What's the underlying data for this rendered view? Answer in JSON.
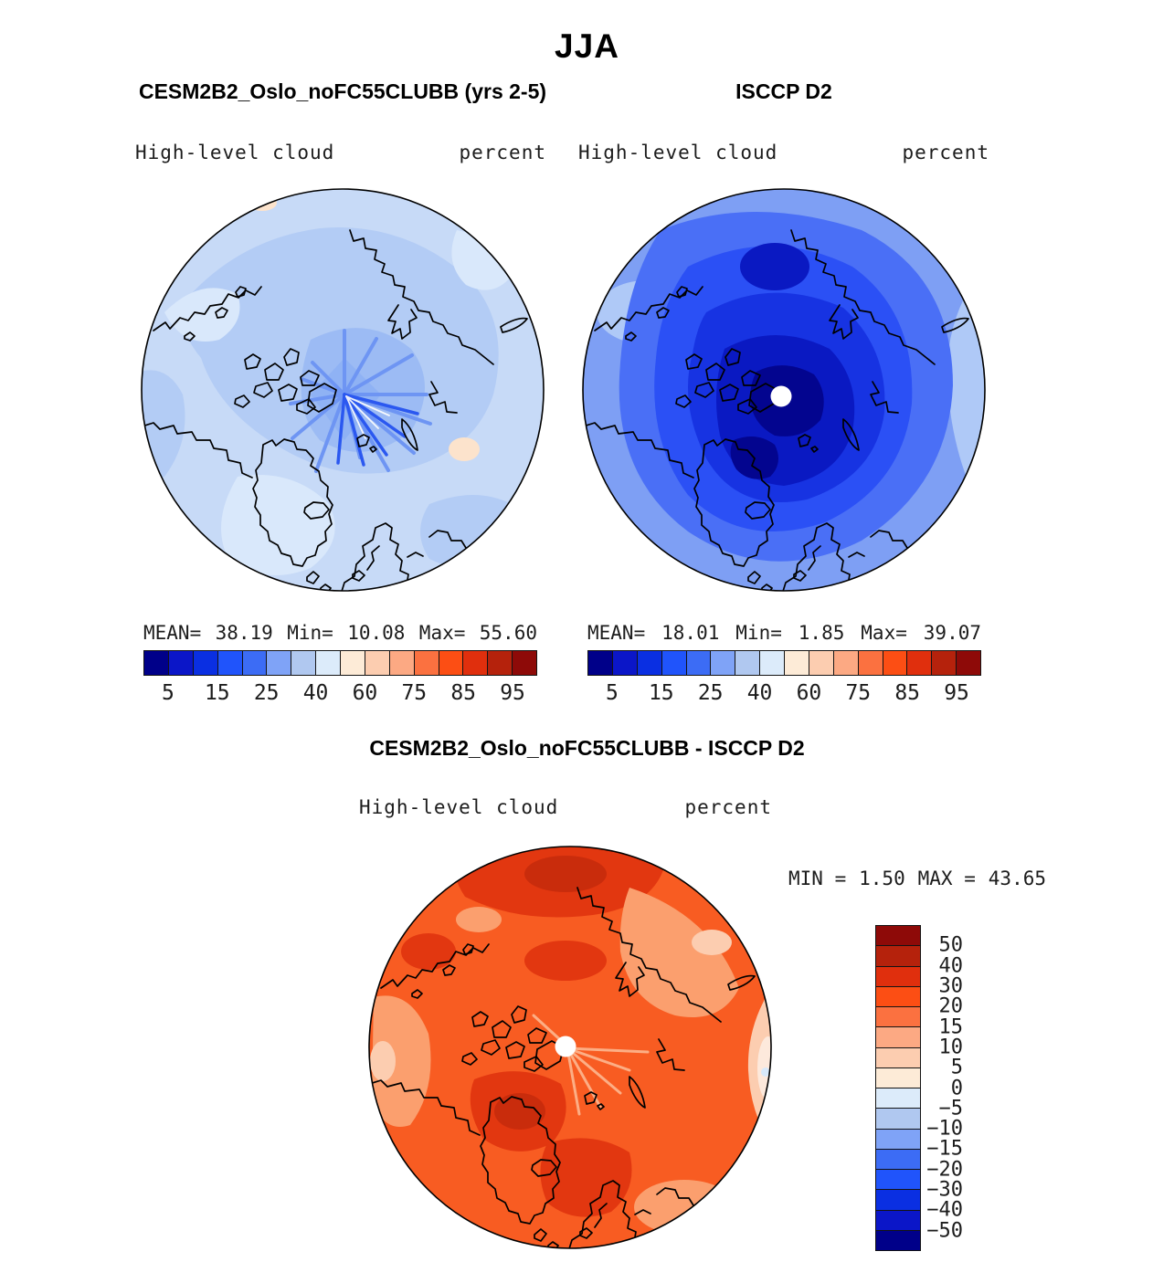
{
  "page": {
    "title": "JJA"
  },
  "panels": [
    {
      "id": "model",
      "title": "CESM2B2_Oslo_noFC55CLUBB (yrs 2-5)",
      "var_label": "High-level cloud",
      "units_label": "percent",
      "stats": {
        "mean_label": "MEAN=",
        "mean": "38.19",
        "min_label": "Min=",
        "min": "10.08",
        "max_label": "Max=",
        "max": "55.60"
      }
    },
    {
      "id": "obs",
      "title": "ISCCP D2",
      "var_label": "High-level cloud",
      "units_label": "percent",
      "stats": {
        "mean_label": "MEAN=",
        "mean": "18.01",
        "min_label": "Min=",
        "min": "1.85",
        "max_label": "Max=",
        "max": "39.07"
      }
    },
    {
      "id": "diff",
      "title": "CESM2B2_Oslo_noFC55CLUBB - ISCCP D2",
      "var_label": "High-level cloud",
      "units_label": "percent",
      "stats": {
        "min_label": "MIN =",
        "min": "1.50",
        "max_label": "MAX =",
        "max": "43.65"
      }
    }
  ],
  "colorbar": {
    "palette": [
      "#000089",
      "#0B16C8",
      "#0A2FE2",
      "#2054FB",
      "#3C6CF5",
      "#7FA3F7",
      "#B0C8F0",
      "#DCEBFA",
      "#FDEBD7",
      "#FCCDB0",
      "#FCA983",
      "#FB7140",
      "#FC4E14",
      "#E02F0D",
      "#B5220C",
      "#8E0A08"
    ],
    "segments": 16,
    "labels": [
      "5",
      "15",
      "25",
      "40",
      "60",
      "75",
      "85",
      "95"
    ],
    "positions": [
      1,
      3,
      5,
      7,
      9,
      11,
      13,
      15
    ]
  },
  "diff_colorbar": {
    "palette": [
      "#8E0A08",
      "#B5220C",
      "#E02F0D",
      "#FC4E14",
      "#FB7140",
      "#FCA983",
      "#FCCDB0",
      "#FDEBD7",
      "#DCEBFA",
      "#B0C8F0",
      "#7FA3F7",
      "#3C6CF5",
      "#2054FB",
      "#0A2FE2",
      "#0B16C8",
      "#000089"
    ],
    "segments": 16,
    "labels": [
      "50",
      "40",
      "30",
      "20",
      "15",
      "10",
      "5",
      "0",
      "−5",
      "−10",
      "−15",
      "−20",
      "−30",
      "−40",
      "−50"
    ],
    "positions": [
      1,
      2,
      3,
      4,
      5,
      6,
      7,
      8,
      9,
      10,
      11,
      12,
      13,
      14,
      15
    ]
  },
  "colors": {
    "m_base": "#C7DAF7",
    "m_mid": "#B3CCF5",
    "m_dark": "#9CBBF4",
    "m_core": "#8FB2F4",
    "m_light": "#D9E8FB",
    "m_star": "#6E95F3",
    "m_star2": "#2B58F0",
    "peach": "#FCE3CC",
    "o_base": "#7E9FF4",
    "o_light": "#AFC9F7",
    "o_mid": "#4A6FF6",
    "o_mid2": "#2B50F5",
    "o_dark": "#1733E2",
    "o_dark2": "#0A19C2",
    "o_core": "#03058F",
    "d_base": "#F85C22",
    "d_dark": "#E23710",
    "d_dark2": "#C92C0C",
    "d_light": "#FB9F6E",
    "d_light2": "#FCCDB0",
    "d_pale": "#FDE9DC",
    "d_streak": "#FCAE85",
    "d_blue": "#D8E9FA"
  },
  "chart_data": [
    {
      "type": "heatmap",
      "subtype": "polar_stereographic_contour_map",
      "season": "JJA",
      "title": "CESM2B2_Oslo_noFC55CLUBB (yrs 2-5)",
      "variable": "High-level cloud",
      "units": "percent",
      "region": "Arctic (Northern Hemisphere polar view with coastlines)",
      "stats": {
        "mean": 38.19,
        "min": 10.08,
        "max": 55.6
      },
      "contour_levels": [
        0,
        5,
        10,
        15,
        20,
        25,
        30,
        40,
        50,
        60,
        70,
        75,
        80,
        85,
        90,
        95,
        100
      ],
      "labeled_levels": [
        5,
        15,
        25,
        40,
        60,
        75,
        85,
        95
      ],
      "palette": [
        "#000089",
        "#0B16C8",
        "#0A2FE2",
        "#2054FB",
        "#3C6CF5",
        "#7FA3F7",
        "#B0C8F0",
        "#DCEBFA",
        "#FDEBD7",
        "#FCCDB0",
        "#FCA983",
        "#FB7140",
        "#FC4E14",
        "#E02F0D",
        "#B5220C",
        "#8E0A08"
      ],
      "legend_position": "below",
      "notes": "Field mostly 25-45% (light/medium blue); radial interpolation star artifact at pole; two tiny peach spots (~55%)"
    },
    {
      "type": "heatmap",
      "subtype": "polar_stereographic_contour_map",
      "season": "JJA",
      "title": "ISCCP D2",
      "variable": "High-level cloud",
      "units": "percent",
      "region": "Arctic (Northern Hemisphere polar view with coastlines)",
      "stats": {
        "mean": 18.01,
        "min": 1.85,
        "max": 39.07
      },
      "contour_levels": [
        0,
        5,
        10,
        15,
        20,
        25,
        30,
        40,
        50,
        60,
        70,
        75,
        80,
        85,
        90,
        95,
        100
      ],
      "labeled_levels": [
        5,
        15,
        25,
        40,
        60,
        75,
        85,
        95
      ],
      "palette": [
        "#000089",
        "#0B16C8",
        "#0A2FE2",
        "#2054FB",
        "#3C6CF5",
        "#7FA3F7",
        "#B0C8F0",
        "#DCEBFA",
        "#FDEBD7",
        "#FCCDB0",
        "#FCA983",
        "#FB7140",
        "#FC4E14",
        "#E02F0D",
        "#B5220C",
        "#8E0A08"
      ],
      "legend_position": "below",
      "notes": "Concentric blues: ~25-30% at rim down to <5% (dark navy) around the pole; white data-hole dot at pole"
    },
    {
      "type": "heatmap",
      "subtype": "polar_stereographic_contour_map_difference",
      "season": "JJA",
      "title": "CESM2B2_Oslo_noFC55CLUBB - ISCCP D2",
      "variable": "High-level cloud",
      "units": "percent",
      "stats": {
        "min": 1.5,
        "max": 43.65
      },
      "contour_levels": [
        -60,
        -50,
        -40,
        -30,
        -20,
        -15,
        -10,
        -5,
        0,
        5,
        10,
        15,
        20,
        30,
        40,
        50,
        60
      ],
      "labeled_levels": [
        50,
        40,
        30,
        20,
        15,
        10,
        5,
        0,
        -5,
        -10,
        -15,
        -20,
        -30,
        -40,
        -50
      ],
      "palette_top_to_bottom": [
        "#8E0A08",
        "#B5220C",
        "#E02F0D",
        "#FC4E14",
        "#FB7140",
        "#FCA983",
        "#FCCDB0",
        "#FDEBD7",
        "#DCEBFA",
        "#B0C8F0",
        "#7FA3F7",
        "#3C6CF5",
        "#2054FB",
        "#0A2FE2",
        "#0B16C8",
        "#000089"
      ],
      "legend_position": "right",
      "notes": "Difference everywhere positive ~+5 to +30 (oranges/reds); darkest reds ~+30-40 over Greenland and Siberian rim; white data-hole dot at pole"
    }
  ]
}
